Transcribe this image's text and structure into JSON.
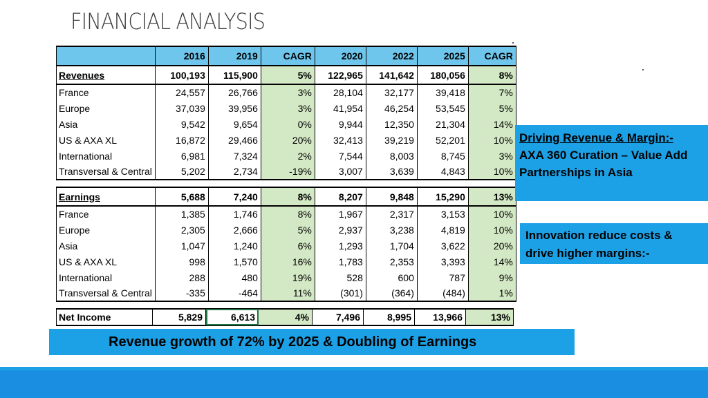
{
  "title": "FINANCIAL ANALYSIS",
  "columns": [
    "",
    "2016",
    "2019",
    "CAGR",
    "2020",
    "2022",
    "2025",
    "CAGR"
  ],
  "revenues": {
    "header": [
      "Revenues",
      "100,193",
      "115,900",
      "5%",
      "122,965",
      "141,642",
      "180,056",
      "8%"
    ],
    "rows": [
      [
        "France",
        "24,557",
        "26,766",
        "3%",
        "28,104",
        "32,177",
        "39,418",
        "7%"
      ],
      [
        "Europe",
        "37,039",
        "39,956",
        "3%",
        "41,954",
        "46,254",
        "53,545",
        "5%"
      ],
      [
        "Asia",
        "9,542",
        "9,654",
        "0%",
        "9,944",
        "12,350",
        "21,304",
        "14%"
      ],
      [
        "US & AXA XL",
        "16,872",
        "29,466",
        "20%",
        "32,413",
        "39,219",
        "52,201",
        "10%"
      ],
      [
        "International",
        "6,981",
        "7,324",
        "2%",
        "7,544",
        "8,003",
        "8,745",
        "3%"
      ],
      [
        "Transversal & Central",
        "5,202",
        "2,734",
        "-19%",
        "3,007",
        "3,639",
        "4,843",
        "10%"
      ]
    ]
  },
  "earnings": {
    "header": [
      "Earnings",
      "5,688",
      "7,240",
      "8%",
      "8,207",
      "9,848",
      "15,290",
      "13%"
    ],
    "rows": [
      [
        "France",
        "1,385",
        "1,746",
        "8%",
        "1,967",
        "2,317",
        "3,153",
        "10%"
      ],
      [
        "Europe",
        "2,305",
        "2,666",
        "5%",
        "2,937",
        "3,238",
        "4,819",
        "10%"
      ],
      [
        "Asia",
        "1,047",
        "1,240",
        "6%",
        "1,293",
        "1,704",
        "3,622",
        "20%"
      ],
      [
        "US & AXA XL",
        "998",
        "1,570",
        "16%",
        "1,783",
        "2,353",
        "3,393",
        "14%"
      ],
      [
        "International",
        "288",
        "480",
        "19%",
        "528",
        "600",
        "787",
        "9%"
      ],
      [
        "Transversal & Central",
        "-335",
        "-464",
        "11%",
        "(301)",
        "(364)",
        "(484)",
        "1%"
      ]
    ]
  },
  "net_income": [
    "Net Income",
    "5,829",
    "6,613",
    "4%",
    "7,496",
    "8,995",
    "13,966",
    "13%"
  ],
  "callout1": {
    "line1": "Driving Revenue & Margin:-",
    "line2": "AXA 360 Curation – Value Add",
    "line3": "Partnerships in Asia"
  },
  "callout2": {
    "text": "Innovation reduce costs & drive higher margins:-"
  },
  "banner": "Revenue growth of 72% by 2025 & Doubling of Earnings",
  "colors": {
    "accent": "#1da1e6",
    "header_fill": "#6ec6ed",
    "cagr_fill": "#d3e8c4"
  }
}
